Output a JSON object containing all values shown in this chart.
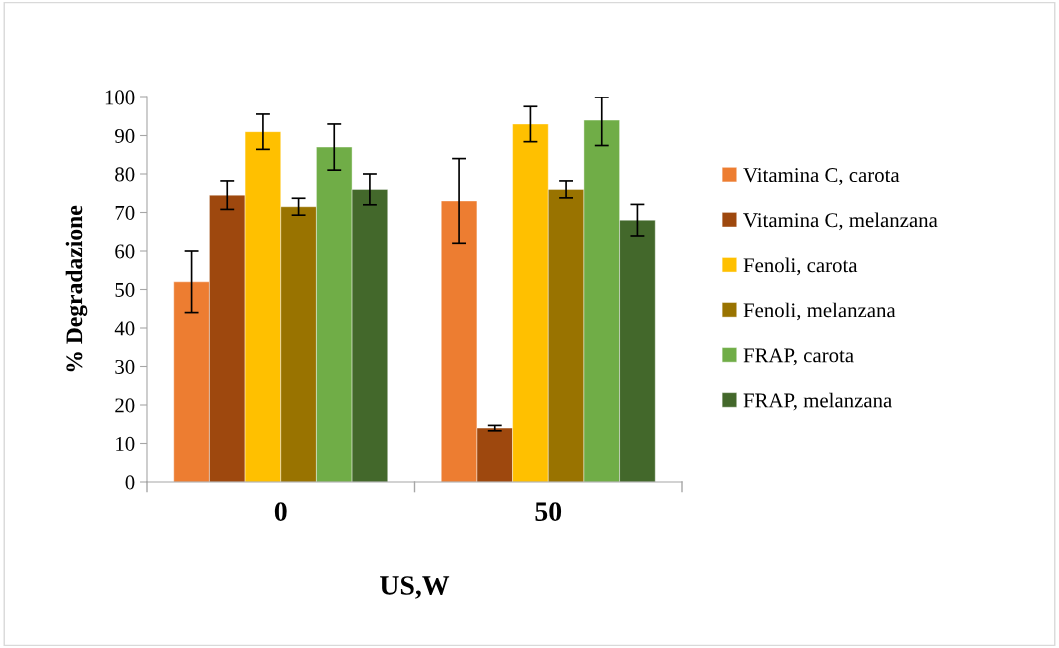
{
  "chart_data": {
    "type": "bar",
    "xlabel": "US,W",
    "ylabel": "% Degradazione",
    "categories": [
      "0",
      "50"
    ],
    "series": [
      {
        "name": "Vitamina C, carota",
        "color": "#ed7d31",
        "values": [
          52,
          73
        ],
        "errors": [
          8,
          11
        ]
      },
      {
        "name": "Vitamina C, melanzana",
        "color": "#9e480e",
        "values": [
          74.5,
          14
        ],
        "errors": [
          3.7,
          0.7
        ]
      },
      {
        "name": "Fenoli, carota",
        "color": "#ffc000",
        "values": [
          91,
          93
        ],
        "errors": [
          4.6,
          4.6
        ]
      },
      {
        "name": "Fenoli, melanzana",
        "color": "#997300",
        "values": [
          71.5,
          76
        ],
        "errors": [
          2.2,
          2.2
        ]
      },
      {
        "name": "FRAP, carota",
        "color": "#70ad47",
        "values": [
          87,
          94
        ],
        "errors": [
          6,
          [
            87.4,
            100
          ]
        ]
      },
      {
        "name": "FRAP, melanzana",
        "color": "#43682b",
        "values": [
          76,
          68
        ],
        "errors": [
          4,
          4.1
        ]
      }
    ],
    "ylim": [
      0,
      100
    ],
    "yticks": [
      0,
      10,
      20,
      30,
      40,
      50,
      60,
      70,
      80,
      90,
      100
    ],
    "grid": false,
    "legend": "right"
  }
}
